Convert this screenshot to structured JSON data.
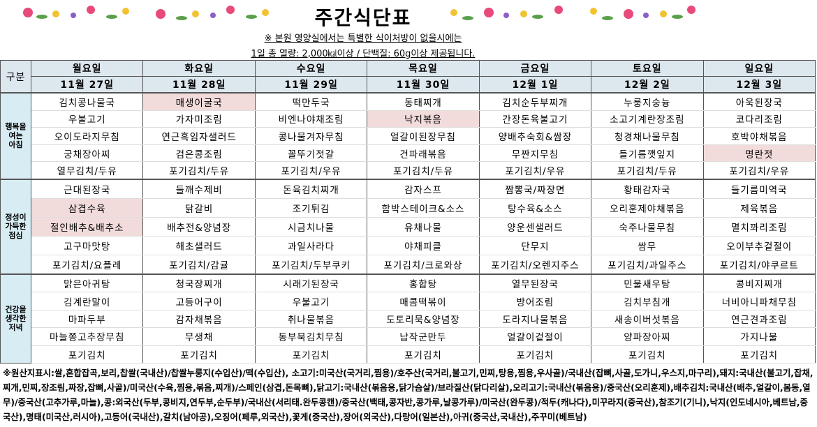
{
  "header": {
    "title": "주간식단표",
    "notice": [
      "※ 본원 영양실에서는 특별한 식이처방이 없을시에는",
      "1일 총 열량: 2,000㎉이상 / 단백질: 60g이상 제공됩니다."
    ]
  },
  "table": {
    "corner": "구분",
    "days": [
      "월요일",
      "화요일",
      "수요일",
      "목요일",
      "금요일",
      "토요일",
      "일요일"
    ],
    "dates": [
      "11월 27일",
      "11월 28일",
      "11월 29일",
      "11월 30일",
      "12월 1일",
      "12월 2일",
      "12월 3일"
    ],
    "highlight_color": "#f2dcdb",
    "meals": [
      {
        "label": "행복을 여는 아침",
        "highlighted": [
          [
            0,
            1
          ],
          [
            1,
            3
          ],
          [
            3,
            6
          ]
        ],
        "rows": [
          [
            "김치콩나물국",
            "매생이굴국",
            "떡만두국",
            "동태찌개",
            "김치순두부찌개",
            "누룽지숭늉",
            "아욱된장국"
          ],
          [
            "우불고기",
            "가자미조림",
            "비엔나야채조림",
            "낙지볶음",
            "간장돈육불고기",
            "소고기계란장조림",
            "코다리조림"
          ],
          [
            "오이도라지무침",
            "연근흑임자샐러드",
            "콩나물겨자무침",
            "얼갈이된장무침",
            "양배추숙회&쌈장",
            "청경채나물무침",
            "호박야채볶음"
          ],
          [
            "궁채장아찌",
            "검은콩조림",
            "꼴뚜기젓갈",
            "건파래볶음",
            "무짠지무침",
            "들기름깻잎지",
            "명란젓"
          ],
          [
            "열무김치/두유",
            "포기김치/두유",
            "포기김치/우유",
            "포기김치/두유",
            "포기김치/우유",
            "포기김치/두유",
            "포기김치/우유"
          ]
        ]
      },
      {
        "label": "정성이 가득한 점심",
        "highlighted": [
          [
            1,
            0
          ],
          [
            2,
            0
          ]
        ],
        "rows": [
          [
            "근대된장국",
            "들깨수제비",
            "돈육김치찌개",
            "감자스프",
            "짬뽕국/짜장면",
            "황태감자국",
            "들기름미역국"
          ],
          [
            "삼겹수육",
            "닭갈비",
            "조기튀김",
            "함박스테이크&소스",
            "탕수육&소스",
            "오리훈제야채볶음",
            "제육볶음"
          ],
          [
            "절인배추&배추소",
            "배추전&양념장",
            "시금치나물",
            "유채나물",
            "양운센샐러드",
            "숙주나물무침",
            "멸치꽈리조림"
          ],
          [
            "고구마맛탕",
            "해초샐러드",
            "과일사라다",
            "야채피클",
            "단무지",
            "쌈무",
            "오이부추겉절이"
          ],
          [
            "포기김치/요플레",
            "포기김치/감귤",
            "포기김치/두부쿠키",
            "포기김치/크로와상",
            "포기김치/오렌지주스",
            "포기김치/과일주스",
            "포기김치/야쿠르트"
          ]
        ]
      },
      {
        "label": "건강을 생각한 저녁",
        "highlighted": [],
        "rows": [
          [
            "맑은아귀탕",
            "청국장찌개",
            "시래기된장국",
            "홍합탕",
            "열무된장국",
            "민물새우탕",
            "콩비지찌개"
          ],
          [
            "김계란말이",
            "고등어구이",
            "우불고기",
            "매콤떡볶이",
            "방어조림",
            "김치부침개",
            "너비아니파채무침"
          ],
          [
            "마파두부",
            "감자채볶음",
            "취나물볶음",
            "도토리묵&양념장",
            "도라지나물볶음",
            "새송이버섯볶음",
            "연근견과조림"
          ],
          [
            "마늘쫑고추장무침",
            "무생채",
            "동부묵김치무침",
            "납작군만두",
            "얼갈이겉절이",
            "양파장아찌",
            "가지나물"
          ],
          [
            "포기김치",
            "포기김치",
            "포기김치",
            "포기김치",
            "포기김치",
            "포기김치",
            "포기김치"
          ]
        ]
      }
    ]
  },
  "footer": "※원산지표시:쌀,혼합잡곡,보리,찹쌀(국내산)/찹쌀누룽지(수입산)/떡(수입산), 소고기:미국산(국거리,찜용)/호주산(국거리,불고기,민찌,탕용,찜용,우사골)/국내산(잡뼈,사골,도가니,우스지,마구리),돼지:국내산(불고기,잡채,찌개,민찌,장조림,짜장,잡뼈,사골)/미국산(수육,찜용,볶음,찌개)/스페인(삼겹,돈목뼈),닭고기:국내산(볶음용,닭가슴살)/브라질산(닭다리살),오리고기:국내산(볶음용)/중국산(오리훈제),배추김치:국내산(배추,얼갈이,봄동,열무)/중국산(고추가루,마늘),콩:외국산(두부,콩비지,연두부,순두부)/국내산(서리태.완두콩캔)/중국산(백태,콩자반,콩가루,날콩가루)/미국산(완두콩)/적두(캐나다),미꾸라지(중국산),참조기(기니),낙지(인도네시아,베트남,중국산),명태(미국산,러시아),고등어(국내산),갈치(남아공),오징어(페루,외국산),꽃게(중국산),장어(외국산),다랑어(일본산),아귀(중국산,국내산),주꾸미(베트남)"
}
